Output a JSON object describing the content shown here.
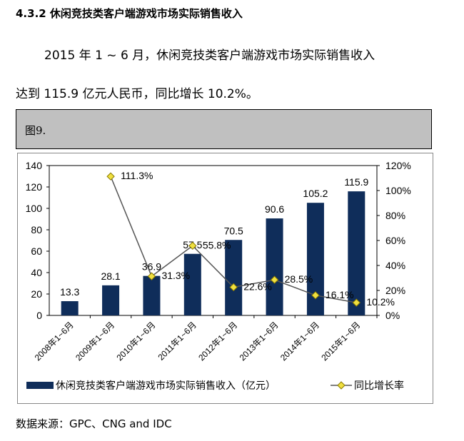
{
  "heading": "4.3.2 休闲竞技类客户端游戏市场实际销售收入",
  "paragraph_line1": "2015 年 1 ~ 6 月，休闲竞技类客户端游戏市场实际销售收入",
  "paragraph_line2": "达到 115.9 亿元人民币，同比增长 10.2%。",
  "figure_label": "图9.",
  "source": "数据来源：GPC、CNG and IDC",
  "chart_data": {
    "type": "bar+line",
    "categories": [
      "2008年1~6月",
      "2009年1~6月",
      "2010年1~6月",
      "2011年1~6月",
      "2012年1~6月",
      "2013年1~6月",
      "2014年1~6月",
      "2015年1~6月"
    ],
    "series": [
      {
        "name": "休闲竞技类客户端游戏市场实际销售收入（亿元）",
        "type": "bar",
        "axis": "left",
        "color": "#0f2d5a",
        "values": [
          13.3,
          28.1,
          36.9,
          57.5,
          70.5,
          90.6,
          105.2,
          115.9
        ],
        "labels": [
          "13.3",
          "28.1",
          "36.9",
          "57.5",
          "70.5",
          "90.6",
          "105.2",
          "115.9"
        ]
      },
      {
        "name": "同比增长率",
        "type": "line",
        "axis": "right",
        "color": "#555555",
        "marker_color": "#f0e040",
        "values": [
          null,
          111.3,
          31.3,
          55.8,
          22.6,
          28.5,
          16.1,
          10.2
        ],
        "labels": [
          null,
          "111.3%",
          "31.3%",
          "55.8%",
          "22.6%",
          "28.5%",
          "16.1%",
          "10.2%"
        ]
      }
    ],
    "ylim_left": [
      0,
      140
    ],
    "yticks_left": [
      "0",
      "20",
      "40",
      "60",
      "80",
      "100",
      "120",
      "140"
    ],
    "ylim_right": [
      0,
      120
    ],
    "yticks_right": [
      "0%",
      "20%",
      "40%",
      "60%",
      "80%",
      "100%",
      "120%"
    ],
    "legend": "bottom",
    "grid": false
  }
}
